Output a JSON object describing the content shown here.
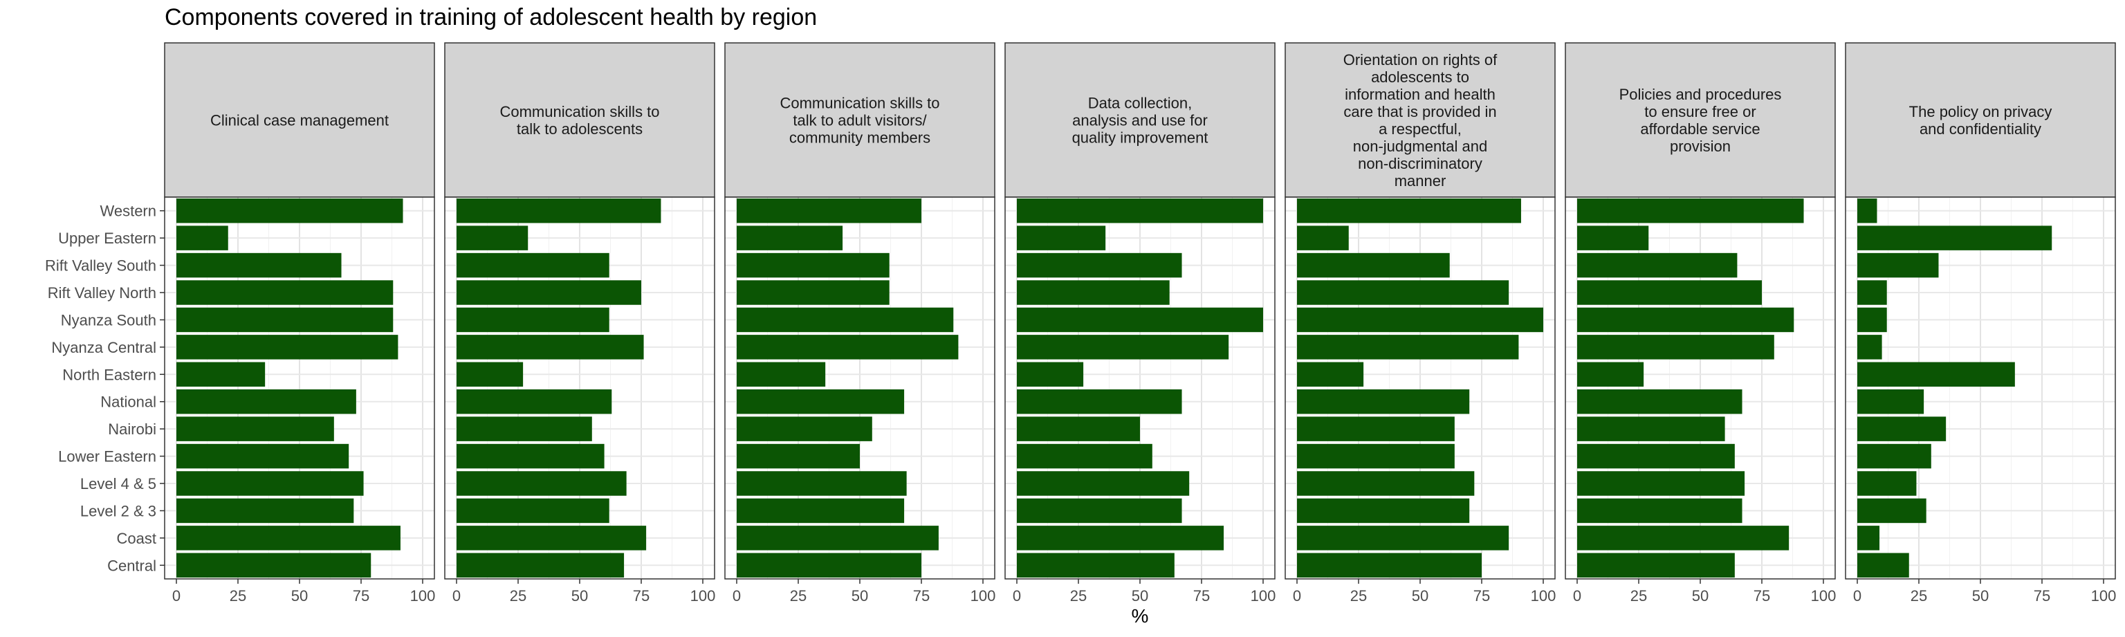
{
  "chart_data": {
    "type": "bar",
    "title": "Components covered in training of adolescent health by region",
    "xlabel": "%",
    "ylabel": "",
    "xlim": [
      0,
      100
    ],
    "x_ticks": [
      0,
      25,
      50,
      75,
      100
    ],
    "grid": true,
    "bar_color": "#0b5504",
    "panel_strip_color": "#d3d3d3",
    "categories": [
      "Western",
      "Upper Eastern",
      "Rift Valley South",
      "Rift Valley North",
      "Nyanza South",
      "Nyanza Central",
      "North Eastern",
      "National",
      "Nairobi",
      "Lower Eastern",
      "Level 4 & 5",
      "Level 2 & 3",
      "Coast",
      "Central"
    ],
    "panels": [
      {
        "name": "Clinical case management",
        "values": [
          92,
          21,
          67,
          88,
          88,
          90,
          36,
          73,
          64,
          70,
          76,
          72,
          91,
          79
        ]
      },
      {
        "name": "Communication skills to\ntalk to adolescents",
        "values": [
          83,
          29,
          62,
          75,
          62,
          76,
          27,
          63,
          55,
          60,
          69,
          62,
          77,
          68
        ]
      },
      {
        "name": "Communication skills to\ntalk to adult visitors/\ncommunity members",
        "values": [
          75,
          43,
          62,
          62,
          88,
          90,
          36,
          68,
          55,
          50,
          69,
          68,
          82,
          75
        ]
      },
      {
        "name": "Data collection,\nanalysis and use for\nquality improvement",
        "values": [
          100,
          36,
          67,
          62,
          100,
          86,
          27,
          67,
          50,
          55,
          70,
          67,
          84,
          64
        ]
      },
      {
        "name": "Orientation on rights of\nadolescents to\ninformation and health\ncare that is provided in\na respectful,\nnon-judgmental and\nnon-discriminatory\nmanner",
        "values": [
          91,
          21,
          62,
          86,
          100,
          90,
          27,
          70,
          64,
          64,
          72,
          70,
          86,
          75
        ]
      },
      {
        "name": "Policies and procedures\nto ensure free or\naffordable service\nprovision",
        "values": [
          92,
          29,
          65,
          75,
          88,
          80,
          27,
          67,
          60,
          64,
          68,
          67,
          86,
          64
        ]
      },
      {
        "name": "The policy on privacy\nand confidentiality",
        "values": [
          8,
          79,
          33,
          12,
          12,
          10,
          64,
          27,
          36,
          30,
          24,
          28,
          9,
          21
        ]
      }
    ]
  }
}
